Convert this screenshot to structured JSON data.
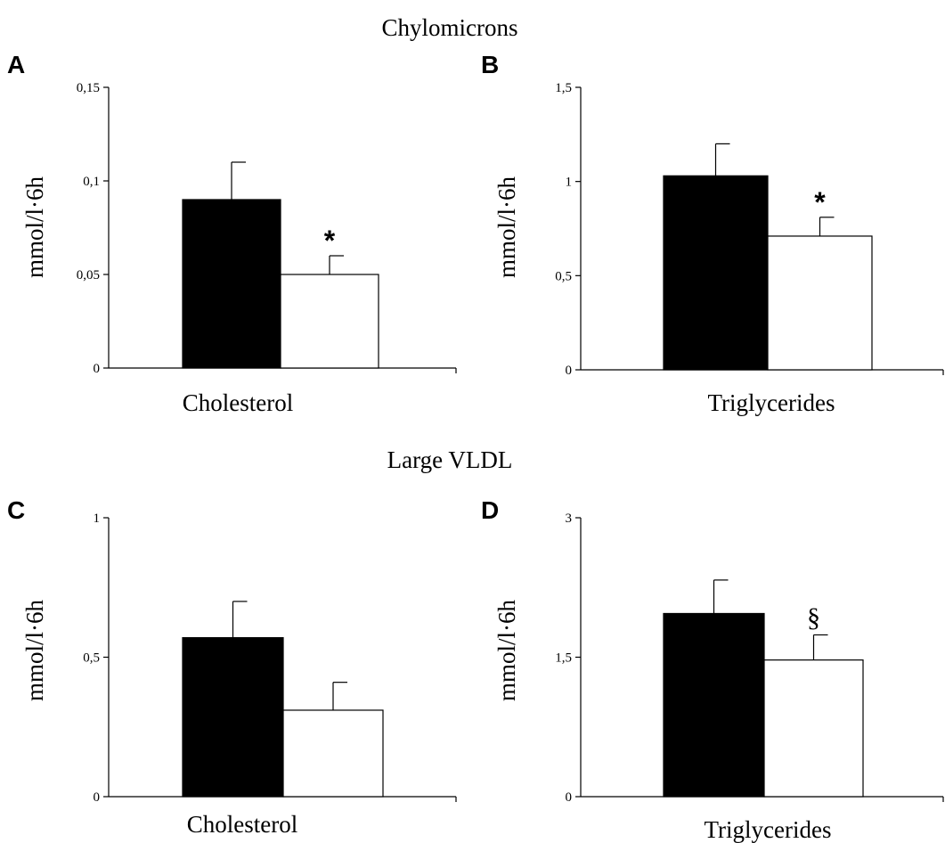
{
  "sections": {
    "top": "Chylomicrons",
    "bottom": "Large VLDL"
  },
  "chart_data": [
    {
      "id": "A",
      "type": "bar",
      "panel_label": "A",
      "ylabel": "mmol/l·6h",
      "xlabel": "Cholesterol",
      "ylim": [
        0,
        0.15
      ],
      "yticks": [
        0,
        0.05,
        0.1,
        0.15
      ],
      "ytick_labels": [
        "0",
        "0,05",
        "0,1",
        "0,15"
      ],
      "grid": false,
      "bars": [
        {
          "value": 0.09,
          "error": 0.02,
          "fill": "#000000",
          "marker": ""
        },
        {
          "value": 0.05,
          "error": 0.01,
          "fill": "#ffffff",
          "marker": "*"
        }
      ]
    },
    {
      "id": "B",
      "type": "bar",
      "panel_label": "B",
      "ylabel": "mmol/l·6h",
      "xlabel": "Triglycerides",
      "ylim": [
        0,
        1.5
      ],
      "yticks": [
        0,
        0.5,
        1,
        1.5
      ],
      "ytick_labels": [
        "0",
        "0,5",
        "1",
        "1,5"
      ],
      "grid": false,
      "bars": [
        {
          "value": 1.03,
          "error": 0.17,
          "fill": "#000000",
          "marker": ""
        },
        {
          "value": 0.71,
          "error": 0.1,
          "fill": "#ffffff",
          "marker": "*"
        }
      ]
    },
    {
      "id": "C",
      "type": "bar",
      "panel_label": "C",
      "ylabel": "mmol/l·6h",
      "xlabel": "Cholesterol",
      "ylim": [
        0,
        1
      ],
      "yticks": [
        0,
        0.5,
        1
      ],
      "ytick_labels": [
        "0",
        "0,5",
        "1"
      ],
      "grid": false,
      "bars": [
        {
          "value": 0.57,
          "error": 0.13,
          "fill": "#000000",
          "marker": ""
        },
        {
          "value": 0.31,
          "error": 0.1,
          "fill": "#ffffff",
          "marker": ""
        }
      ]
    },
    {
      "id": "D",
      "type": "bar",
      "panel_label": "D",
      "ylabel": "mmol/l·6h",
      "xlabel": "Triglycerides",
      "ylim": [
        0,
        3
      ],
      "yticks": [
        0,
        1.5,
        3
      ],
      "ytick_labels": [
        "0",
        "1,5",
        "3"
      ],
      "grid": false,
      "bars": [
        {
          "value": 1.97,
          "error": 0.36,
          "fill": "#000000",
          "marker": ""
        },
        {
          "value": 1.47,
          "error": 0.27,
          "fill": "#ffffff",
          "marker": "§"
        }
      ]
    }
  ]
}
